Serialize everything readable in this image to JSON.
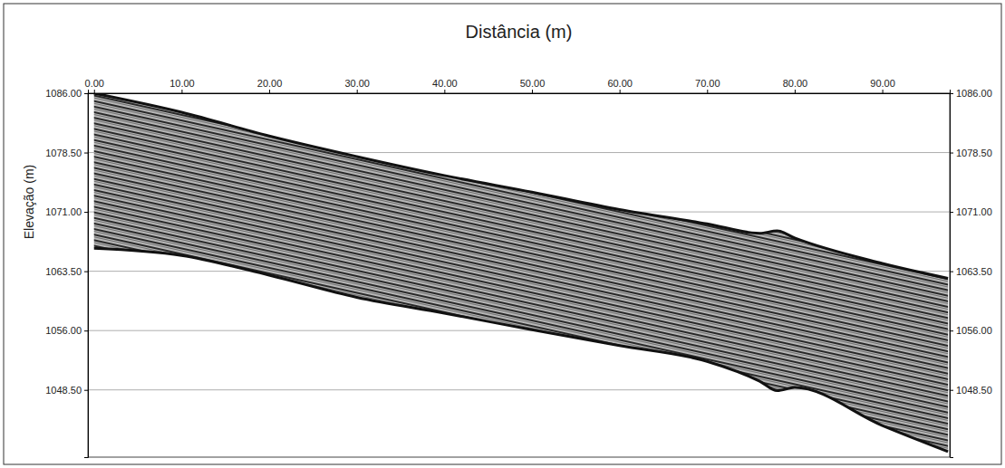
{
  "chart_data": {
    "type": "range_area",
    "xlabel": "Distância (m)",
    "ylabel": "Elevação (m)",
    "x": [
      0,
      10,
      20,
      30,
      40,
      50,
      60,
      70,
      76,
      78,
      80,
      90,
      97.5
    ],
    "values": [
      1086,
      1083.6,
      1080.6,
      1078,
      1075.6,
      1073.5,
      1071.3,
      1069.5,
      1068.3,
      1068.6,
      1067.7,
      1064.5,
      1062.6
    ],
    "lower": [
      1066.4,
      1065.5,
      1063,
      1060.2,
      1058.2,
      1056.1,
      1054.1,
      1052.1,
      1049.6,
      1048.4,
      1048.8,
      1044,
      1040.7
    ],
    "xlim": [
      -0.7,
      97.7
    ],
    "ylim": [
      1040,
      1086
    ],
    "xticks": [
      {
        "value": 0,
        "label": "0.00"
      },
      {
        "value": 10,
        "label": "10.00"
      },
      {
        "value": 20,
        "label": "20.00"
      },
      {
        "value": 30,
        "label": "30.00"
      },
      {
        "value": 40,
        "label": "40.00"
      },
      {
        "value": 50,
        "label": "50.00"
      },
      {
        "value": 60,
        "label": "60.00"
      },
      {
        "value": 70,
        "label": "70.00"
      },
      {
        "value": 80,
        "label": "80.00"
      },
      {
        "value": 90,
        "label": "90.00"
      }
    ],
    "yticks": [
      {
        "value": 1086,
        "label": "1086.00"
      },
      {
        "value": 1078.5,
        "label": "1078.50"
      },
      {
        "value": 1071,
        "label": "1071.00"
      },
      {
        "value": 1063.5,
        "label": "1063.50"
      },
      {
        "value": 1056,
        "label": "1056.00"
      },
      {
        "value": 1048.5,
        "label": "1048.50"
      }
    ],
    "grid": true,
    "color": "#555555"
  }
}
